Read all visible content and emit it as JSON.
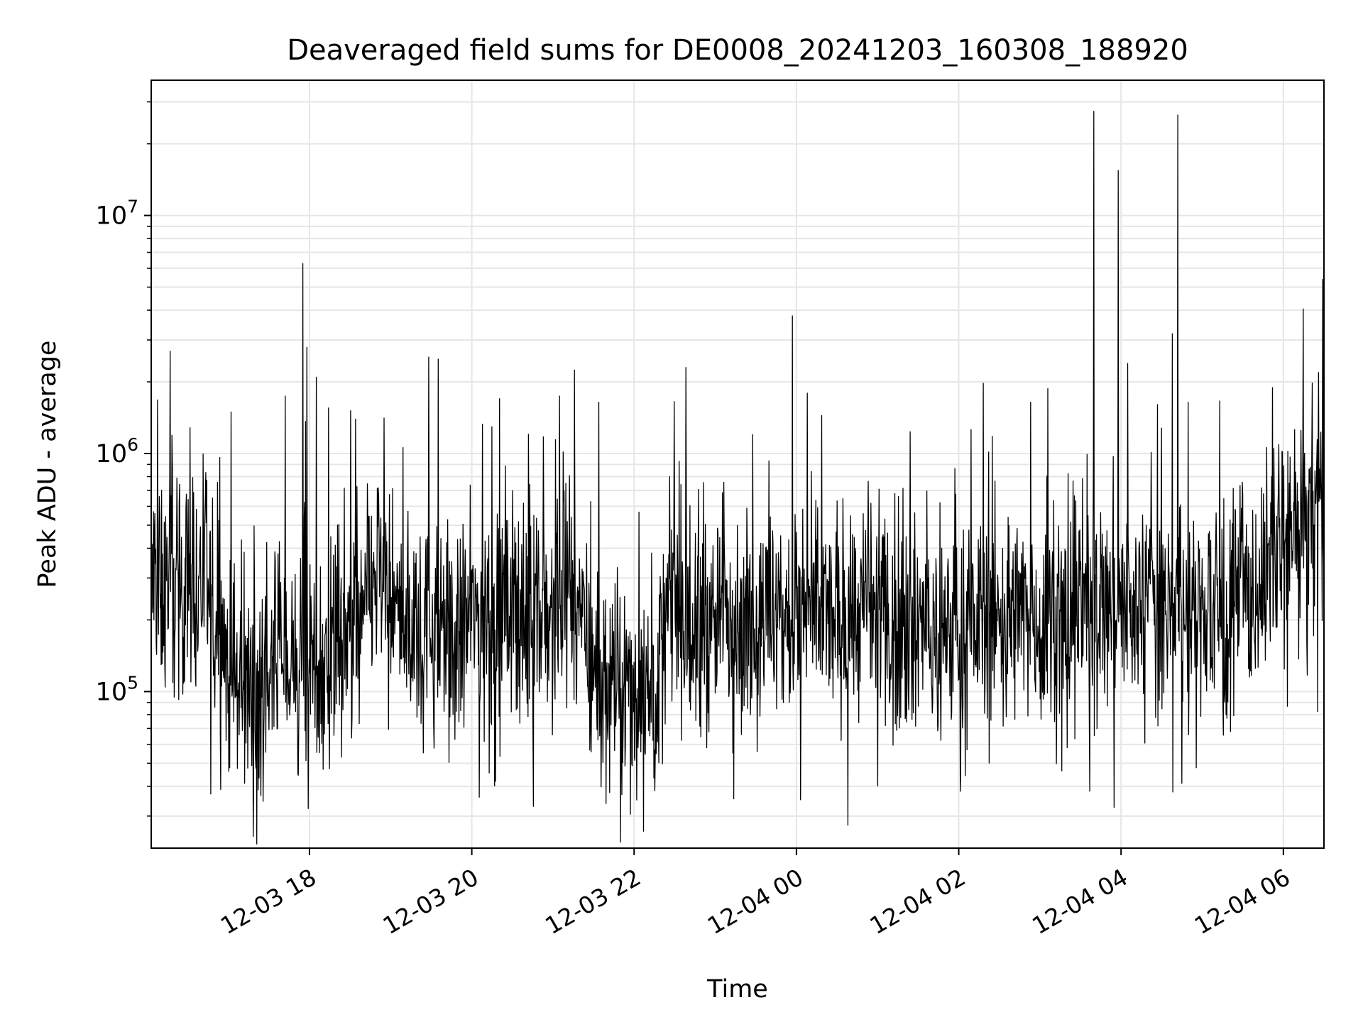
{
  "chart_data": {
    "type": "line",
    "title": "Deaveraged field sums for DE0008_20241203_160308_188920",
    "xlabel": "Time",
    "ylabel": "Peak ADU - average",
    "x_tick_labels": [
      "12-03 18",
      "12-03 20",
      "12-03 22",
      "12-04 00",
      "12-04 02",
      "12-04 04",
      "12-04 06"
    ],
    "y_tick_labels": [
      {
        "base": "10",
        "exp": "5",
        "value": 100000
      },
      {
        "base": "10",
        "exp": "6",
        "value": 1000000
      },
      {
        "base": "10",
        "exp": "7",
        "value": 10000000
      }
    ],
    "x_range": [
      "2024-12-03 16:03",
      "2024-12-04 06:30"
    ],
    "y_range": [
      22000,
      37000000
    ],
    "yscale": "log",
    "grid": true,
    "line_color": "#000000",
    "grid_color": "#e6e6e6",
    "series": [
      {
        "x_start": "2024-12-03 16:03",
        "x_end": "2024-12-04 06:30",
        "values": [
          280000,
          300000,
          260000,
          310000,
          240000,
          300000,
          320000,
          270000,
          290000,
          200000,
          180000,
          150000,
          120000,
          100000,
          110000,
          95000,
          100000,
          120000,
          140000,
          150000,
          130000,
          120000,
          140000,
          160000,
          150000,
          140000,
          130000,
          160000,
          200000,
          170000,
          160000,
          180000,
          250000,
          300000,
          320000,
          240000,
          200000,
          210000,
          190000,
          180000,
          170000,
          200000,
          180000,
          170000,
          190000,
          160000,
          180000,
          200000,
          220000,
          210000,
          200000,
          190000,
          220000,
          210000,
          230000,
          200000,
          190000,
          210000,
          220000,
          200000,
          210000,
          250000,
          280000,
          220000,
          160000,
          140000,
          120000,
          100000,
          110000,
          90000,
          100000,
          95000,
          110000,
          120000,
          100000,
          130000,
          200000,
          250000,
          220000,
          180000,
          160000,
          170000,
          180000,
          200000,
          230000,
          210000,
          220000,
          200000,
          190000,
          200000,
          190000,
          210000,
          200000,
          180000,
          190000,
          200000,
          210000,
          200000,
          220000,
          210000,
          200000,
          190000,
          200000,
          210000,
          200000,
          220000,
          230000,
          210000,
          200000,
          180000,
          190000,
          200000,
          180000,
          190000,
          170000,
          160000,
          180000,
          170000,
          190000,
          180000,
          170000,
          190000,
          200000,
          210000,
          220000,
          200000,
          210000,
          190000,
          200000,
          220000,
          210000,
          200000,
          190000,
          210000,
          220000,
          200000,
          210000,
          230000,
          240000,
          220000,
          210000,
          220000,
          230000,
          240000,
          220000,
          210000,
          230000,
          240000,
          230000,
          250000,
          230000,
          220000,
          230000,
          210000,
          200000,
          220000,
          230000,
          220000,
          200000,
          210000,
          220000,
          240000,
          250000,
          260000,
          300000,
          350000,
          400000,
          380000,
          420000,
          450000,
          480000,
          520000,
          600000,
          550000
        ],
        "spikes": [
          {
            "x": "2024-12-03 16:17",
            "value": 2700000
          },
          {
            "x": "2024-12-03 16:52",
            "value": 760000
          },
          {
            "x": "2024-12-03 17:02",
            "value": 1500000
          },
          {
            "x": "2024-12-03 17:42",
            "value": 1750000
          },
          {
            "x": "2024-12-03 17:55",
            "value": 6300000
          },
          {
            "x": "2024-12-03 17:58",
            "value": 2800000
          },
          {
            "x": "2024-12-03 18:05",
            "value": 2100000
          },
          {
            "x": "2024-12-03 18:14",
            "value": 1560000
          },
          {
            "x": "2024-12-03 18:34",
            "value": 1400000
          },
          {
            "x": "2024-12-03 19:28",
            "value": 2550000
          },
          {
            "x": "2024-12-03 19:35",
            "value": 2500000
          },
          {
            "x": "2024-12-03 20:15",
            "value": 1300000
          },
          {
            "x": "2024-12-03 20:42",
            "value": 1210000
          },
          {
            "x": "2024-12-03 21:05",
            "value": 1750000
          },
          {
            "x": "2024-12-03 21:16",
            "value": 2250000
          },
          {
            "x": "2024-12-03 21:34",
            "value": 1650000
          },
          {
            "x": "2024-12-03 23:57",
            "value": 3800000
          },
          {
            "x": "2024-12-04 00:08",
            "value": 1800000
          },
          {
            "x": "2024-12-04 01:24",
            "value": 1240000
          },
          {
            "x": "2024-12-04 02:18",
            "value": 1980000
          },
          {
            "x": "2024-12-04 02:53",
            "value": 1650000
          },
          {
            "x": "2024-12-04 03:06",
            "value": 1880000
          },
          {
            "x": "2024-12-04 03:40",
            "value": 27500000
          },
          {
            "x": "2024-12-04 03:58",
            "value": 15500000
          },
          {
            "x": "2024-12-04 04:05",
            "value": 2400000
          },
          {
            "x": "2024-12-04 04:38",
            "value": 3200000
          },
          {
            "x": "2024-12-04 04:42",
            "value": 26500000
          },
          {
            "x": "2024-12-04 05:52",
            "value": 1900000
          },
          {
            "x": "2024-12-04 06:26",
            "value": 2200000
          },
          {
            "x": "2024-12-04 06:29",
            "value": 5400000
          }
        ],
        "dips": [
          {
            "x": "2024-12-03 16:47",
            "value": 37000
          },
          {
            "x": "2024-12-03 17:22",
            "value": 38500
          },
          {
            "x": "2024-12-03 20:17",
            "value": 40000
          },
          {
            "x": "2024-12-04 00:03",
            "value": 35000
          },
          {
            "x": "2024-12-04 01:00",
            "value": 40000
          },
          {
            "x": "2024-12-04 02:01",
            "value": 38000
          },
          {
            "x": "2024-12-04 03:37",
            "value": 38000
          },
          {
            "x": "2024-12-04 03:55",
            "value": 32500
          },
          {
            "x": "2024-12-04 04:45",
            "value": 41000
          }
        ]
      }
    ]
  }
}
